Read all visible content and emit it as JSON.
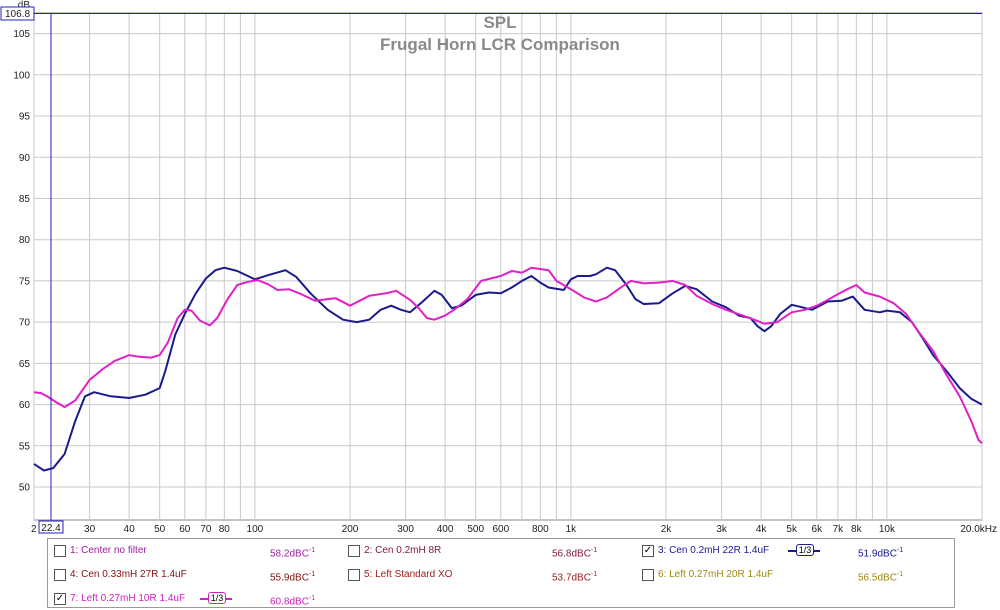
{
  "chart_data": {
    "type": "line",
    "title": "SPL",
    "subtitle": "Frugal Horn LCR Comparison",
    "ylabel": "dB",
    "xlabel": "",
    "x_scale": "log",
    "xlim": [
      20,
      20000
    ],
    "ylim": [
      46,
      107.5
    ],
    "cursor": {
      "y_readout": "106.8",
      "x_readout": "22.4"
    },
    "yticks": [
      {
        "v": 50,
        "l": "50"
      },
      {
        "v": 55,
        "l": "55"
      },
      {
        "v": 60,
        "l": "60"
      },
      {
        "v": 65,
        "l": "65"
      },
      {
        "v": 70,
        "l": "70"
      },
      {
        "v": 75,
        "l": "75"
      },
      {
        "v": 80,
        "l": "80"
      },
      {
        "v": 85,
        "l": "85"
      },
      {
        "v": 90,
        "l": "90"
      },
      {
        "v": 95,
        "l": "95"
      },
      {
        "v": 100,
        "l": "100"
      },
      {
        "v": 105,
        "l": "105"
      }
    ],
    "xticks": [
      {
        "v": 20,
        "l": "2"
      },
      {
        "v": 30,
        "l": "30"
      },
      {
        "v": 40,
        "l": "40"
      },
      {
        "v": 50,
        "l": "50"
      },
      {
        "v": 60,
        "l": "60"
      },
      {
        "v": 70,
        "l": "70"
      },
      {
        "v": 80,
        "l": "80"
      },
      {
        "v": 100,
        "l": "100"
      },
      {
        "v": 200,
        "l": "200"
      },
      {
        "v": 300,
        "l": "300"
      },
      {
        "v": 400,
        "l": "400"
      },
      {
        "v": 500,
        "l": "500"
      },
      {
        "v": 600,
        "l": "600"
      },
      {
        "v": 800,
        "l": "800"
      },
      {
        "v": 1000,
        "l": "1k"
      },
      {
        "v": 2000,
        "l": "2k"
      },
      {
        "v": 3000,
        "l": "3k"
      },
      {
        "v": 4000,
        "l": "4k"
      },
      {
        "v": 5000,
        "l": "5k"
      },
      {
        "v": 6000,
        "l": "6k"
      },
      {
        "v": 7000,
        "l": "7k"
      },
      {
        "v": 8000,
        "l": "8k"
      },
      {
        "v": 10000,
        "l": "10k"
      },
      {
        "v": 20000,
        "l": "20.0kHz"
      }
    ],
    "grid_x": [
      20,
      30,
      40,
      50,
      60,
      70,
      80,
      90,
      100,
      200,
      300,
      400,
      500,
      600,
      700,
      800,
      900,
      1000,
      2000,
      3000,
      4000,
      5000,
      6000,
      7000,
      8000,
      9000,
      10000,
      20000
    ],
    "series": [
      {
        "name": "3: Cen 0.2mH 22R 1.4uF",
        "color": "#1a1a8c",
        "points": [
          [
            20,
            52.8
          ],
          [
            21.5,
            52.0
          ],
          [
            23,
            52.3
          ],
          [
            25,
            54.0
          ],
          [
            27,
            58.0
          ],
          [
            29,
            61.0
          ],
          [
            31,
            61.5
          ],
          [
            35,
            61.0
          ],
          [
            40,
            60.8
          ],
          [
            45,
            61.2
          ],
          [
            50,
            62.0
          ],
          [
            52,
            64.0
          ],
          [
            56,
            68.5
          ],
          [
            60,
            71.0
          ],
          [
            65,
            73.5
          ],
          [
            70,
            75.3
          ],
          [
            75,
            76.3
          ],
          [
            80,
            76.6
          ],
          [
            88,
            76.2
          ],
          [
            100,
            75.2
          ],
          [
            110,
            75.7
          ],
          [
            125,
            76.3
          ],
          [
            135,
            75.5
          ],
          [
            150,
            73.5
          ],
          [
            170,
            71.5
          ],
          [
            190,
            70.3
          ],
          [
            210,
            70.0
          ],
          [
            230,
            70.3
          ],
          [
            250,
            71.5
          ],
          [
            270,
            72.0
          ],
          [
            290,
            71.5
          ],
          [
            310,
            71.2
          ],
          [
            340,
            72.5
          ],
          [
            370,
            73.8
          ],
          [
            390,
            73.3
          ],
          [
            420,
            71.7
          ],
          [
            450,
            72.0
          ],
          [
            500,
            73.3
          ],
          [
            550,
            73.6
          ],
          [
            600,
            73.5
          ],
          [
            650,
            74.2
          ],
          [
            700,
            75.0
          ],
          [
            750,
            75.6
          ],
          [
            800,
            74.8
          ],
          [
            850,
            74.2
          ],
          [
            950,
            73.9
          ],
          [
            1000,
            75.2
          ],
          [
            1050,
            75.6
          ],
          [
            1150,
            75.6
          ],
          [
            1200,
            75.8
          ],
          [
            1300,
            76.6
          ],
          [
            1380,
            76.3
          ],
          [
            1500,
            74.5
          ],
          [
            1600,
            72.8
          ],
          [
            1700,
            72.2
          ],
          [
            1900,
            72.3
          ],
          [
            2100,
            73.5
          ],
          [
            2300,
            74.4
          ],
          [
            2500,
            74.0
          ],
          [
            2800,
            72.5
          ],
          [
            3100,
            71.8
          ],
          [
            3400,
            70.8
          ],
          [
            3700,
            70.5
          ],
          [
            3900,
            69.5
          ],
          [
            4100,
            68.9
          ],
          [
            4300,
            69.5
          ],
          [
            4600,
            71.0
          ],
          [
            5000,
            72.1
          ],
          [
            5400,
            71.8
          ],
          [
            5800,
            71.5
          ],
          [
            6500,
            72.5
          ],
          [
            7200,
            72.6
          ],
          [
            7800,
            73.1
          ],
          [
            8500,
            71.5
          ],
          [
            9500,
            71.2
          ],
          [
            10000,
            71.4
          ],
          [
            11000,
            71.2
          ],
          [
            12000,
            70.0
          ],
          [
            13000,
            68.0
          ],
          [
            14000,
            66.0
          ],
          [
            15500,
            64.0
          ],
          [
            17000,
            62.0
          ],
          [
            18500,
            60.7
          ],
          [
            20000,
            60.0
          ]
        ]
      },
      {
        "name": "7: Left 0.27mH 10R 1.4uF",
        "color": "#e020c8",
        "points": [
          [
            20,
            61.5
          ],
          [
            21,
            61.4
          ],
          [
            22,
            61.0
          ],
          [
            23.5,
            60.3
          ],
          [
            25,
            59.7
          ],
          [
            27,
            60.5
          ],
          [
            30,
            63.0
          ],
          [
            33,
            64.3
          ],
          [
            36,
            65.3
          ],
          [
            40,
            66.0
          ],
          [
            43,
            65.8
          ],
          [
            47,
            65.7
          ],
          [
            50,
            66.0
          ],
          [
            53,
            67.5
          ],
          [
            57,
            70.5
          ],
          [
            60,
            71.5
          ],
          [
            63,
            71.4
          ],
          [
            67,
            70.2
          ],
          [
            72,
            69.6
          ],
          [
            76,
            70.5
          ],
          [
            82,
            72.8
          ],
          [
            88,
            74.5
          ],
          [
            95,
            74.9
          ],
          [
            102,
            75.1
          ],
          [
            110,
            74.6
          ],
          [
            118,
            73.9
          ],
          [
            128,
            74.0
          ],
          [
            140,
            73.4
          ],
          [
            155,
            72.6
          ],
          [
            170,
            72.8
          ],
          [
            180,
            72.9
          ],
          [
            200,
            72.0
          ],
          [
            230,
            73.2
          ],
          [
            260,
            73.5
          ],
          [
            280,
            73.8
          ],
          [
            310,
            72.7
          ],
          [
            330,
            71.7
          ],
          [
            350,
            70.5
          ],
          [
            370,
            70.3
          ],
          [
            400,
            70.8
          ],
          [
            430,
            71.6
          ],
          [
            470,
            72.8
          ],
          [
            520,
            75.0
          ],
          [
            600,
            75.6
          ],
          [
            650,
            76.2
          ],
          [
            700,
            76.0
          ],
          [
            750,
            76.6
          ],
          [
            850,
            76.3
          ],
          [
            900,
            75.0
          ],
          [
            1000,
            74.0
          ],
          [
            1100,
            73.0
          ],
          [
            1200,
            72.5
          ],
          [
            1300,
            73.0
          ],
          [
            1450,
            74.3
          ],
          [
            1550,
            75.0
          ],
          [
            1700,
            74.7
          ],
          [
            1900,
            74.8
          ],
          [
            2100,
            75.0
          ],
          [
            2300,
            74.5
          ],
          [
            2500,
            73.2
          ],
          [
            2800,
            72.2
          ],
          [
            3100,
            71.5
          ],
          [
            3500,
            70.8
          ],
          [
            3800,
            70.3
          ],
          [
            4100,
            69.8
          ],
          [
            4500,
            70.0
          ],
          [
            5000,
            71.2
          ],
          [
            5500,
            71.5
          ],
          [
            6000,
            72.0
          ],
          [
            6500,
            72.7
          ],
          [
            7000,
            73.4
          ],
          [
            7500,
            74.0
          ],
          [
            8000,
            74.5
          ],
          [
            8500,
            73.6
          ],
          [
            9500,
            73.1
          ],
          [
            10500,
            72.3
          ],
          [
            11500,
            71.0
          ],
          [
            12500,
            69.0
          ],
          [
            14000,
            66.5
          ],
          [
            15500,
            63.5
          ],
          [
            17000,
            61.0
          ],
          [
            18500,
            58.0
          ],
          [
            19500,
            55.7
          ],
          [
            20000,
            55.3
          ]
        ]
      }
    ]
  },
  "legend": {
    "items": [
      {
        "label": "1: Center no filter",
        "value": "58.2dBC",
        "sup": "-1",
        "checked": false,
        "color": "#a020a0",
        "smoothing": ""
      },
      {
        "label": "2: Cen 0.2mH 8R",
        "value": "56.8dBC",
        "sup": "-1",
        "checked": false,
        "color": "#7a1840",
        "smoothing": ""
      },
      {
        "label": "3: Cen 0.2mH 22R 1.4uF",
        "value": "51.9dBC",
        "sup": "-1",
        "checked": true,
        "color": "#1a1a8c",
        "smoothing": "1/3"
      },
      {
        "label": "4: Cen 0.33mH 27R 1.4uF",
        "value": "55.9dBC",
        "sup": "-1",
        "checked": false,
        "color": "#801010",
        "smoothing": ""
      },
      {
        "label": "5: Left Standard XO",
        "value": "53.7dBC",
        "sup": "-1",
        "checked": false,
        "color": "#9a2020",
        "smoothing": ""
      },
      {
        "label": "6: Left 0.27mH 20R 1.4uF",
        "value": "56.5dBC",
        "sup": "-1",
        "checked": false,
        "color": "#9a8a10",
        "smoothing": ""
      },
      {
        "label": "7: Left 0.27mH 10R 1.4uF",
        "value": "60.8dBC",
        "sup": "-1",
        "checked": true,
        "color": "#d020c0",
        "smoothing": "1/3"
      }
    ]
  }
}
